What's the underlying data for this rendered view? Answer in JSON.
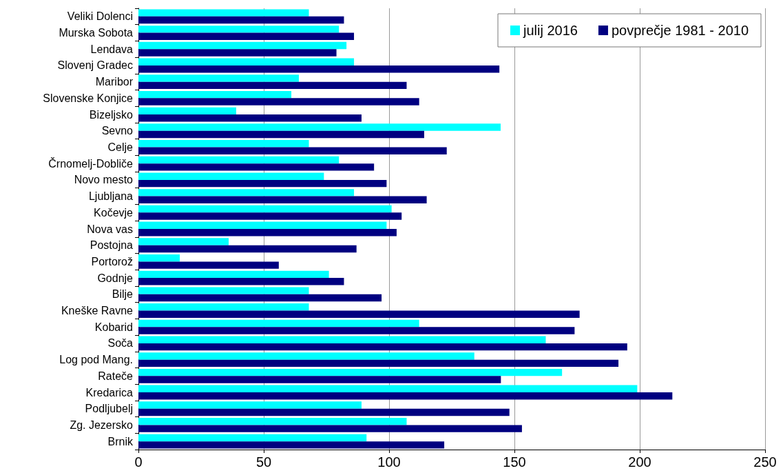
{
  "chart_data": {
    "type": "bar",
    "orientation": "horizontal",
    "categories": [
      "Veliki Dolenci",
      "Murska Sobota",
      "Lendava",
      "Slovenj Gradec",
      "Maribor",
      "Slovenske Konjice",
      "Bizeljsko",
      "Sevno",
      "Celje",
      "Črnomelj-Dobliče",
      "Novo mesto",
      "Ljubljana",
      "Kočevje",
      "Nova vas",
      "Postojna",
      "Portorož",
      "Godnje",
      "Bilje",
      "Kneške Ravne",
      "Kobarid",
      "Soča",
      "Log pod Mang.",
      "Rateče",
      "Kredarica",
      "Podljubelj",
      "Zg. Jezersko",
      "Brnik"
    ],
    "series": [
      {
        "name": "julij 2016",
        "color": "#00ffff",
        "values": [
          68,
          80,
          83,
          86,
          64,
          61,
          39,
          144.5,
          68,
          80,
          74,
          86,
          101,
          99,
          36,
          16.5,
          76,
          68,
          68,
          112,
          162.5,
          134,
          169,
          199,
          89,
          107,
          91
        ]
      },
      {
        "name": "povprečje 1981 - 2010",
        "color": "#000080",
        "values": [
          82,
          86,
          79,
          144,
          107,
          112,
          89,
          114,
          123,
          94,
          99,
          115,
          105,
          103,
          87,
          56,
          82,
          97,
          176,
          174,
          195,
          191.5,
          144.6,
          213,
          148,
          153,
          122
        ]
      }
    ],
    "xlim": [
      0,
      250
    ],
    "xticks": [
      0,
      50,
      100,
      150,
      200,
      250
    ],
    "grid": "x",
    "legend": "top right"
  }
}
